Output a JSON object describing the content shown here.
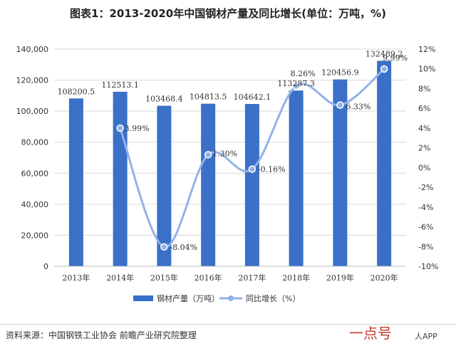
{
  "title": "图表1：2013-2020年中国钢材产量及同比增长(单位：万吨，%)",
  "source": "资料来源：中国钢铁工业协会 前瞻产业研究院整理",
  "watermark": "一点号",
  "watermark_sub": "人APP",
  "colors": {
    "bar": "#3a70c8",
    "line": "#93b2e6",
    "grid": "#d9d9d9",
    "text": "#333333"
  },
  "chart_data": {
    "type": "bar",
    "title": "图表1：2013-2020年中国钢材产量及同比增长(单位：万吨，%)",
    "categories": [
      "2013年",
      "2014年",
      "2015年",
      "2016年",
      "2017年",
      "2018年",
      "2019年",
      "2020年"
    ],
    "series": [
      {
        "name": "钢材产量（万吨）",
        "type": "bar",
        "axis": "left",
        "values": [
          108200.5,
          112513.1,
          103468.4,
          104813.5,
          104642.1,
          113287.3,
          120456.9,
          132489.2
        ],
        "labels": [
          "108200.5",
          "112513.1",
          "103468.4",
          "104813.5",
          "104642.1",
          "113287.3",
          "120456.9",
          "132489.2"
        ]
      },
      {
        "name": "同比增长（%）",
        "type": "line",
        "axis": "right",
        "values": [
          null,
          3.99,
          -8.04,
          1.3,
          -0.16,
          8.26,
          6.33,
          9.99
        ],
        "labels": [
          "",
          "3.99%",
          "-8.04%",
          "1.30%",
          "-0.16%",
          "8.26%",
          "6.33%",
          "9.99%"
        ]
      }
    ],
    "y_left": {
      "ylim": [
        0,
        140000
      ],
      "ticks": [
        "0",
        "20,000",
        "40,000",
        "60,000",
        "80,000",
        "100,000",
        "120,000",
        "140,000"
      ]
    },
    "y_right": {
      "ylim": [
        -10,
        12
      ],
      "ticks": [
        "-10%",
        "-8%",
        "-6%",
        "-4%",
        "-2%",
        "0%",
        "2%",
        "4%",
        "6%",
        "8%",
        "10%",
        "12%"
      ]
    },
    "grid": true,
    "legend": "bottom"
  }
}
